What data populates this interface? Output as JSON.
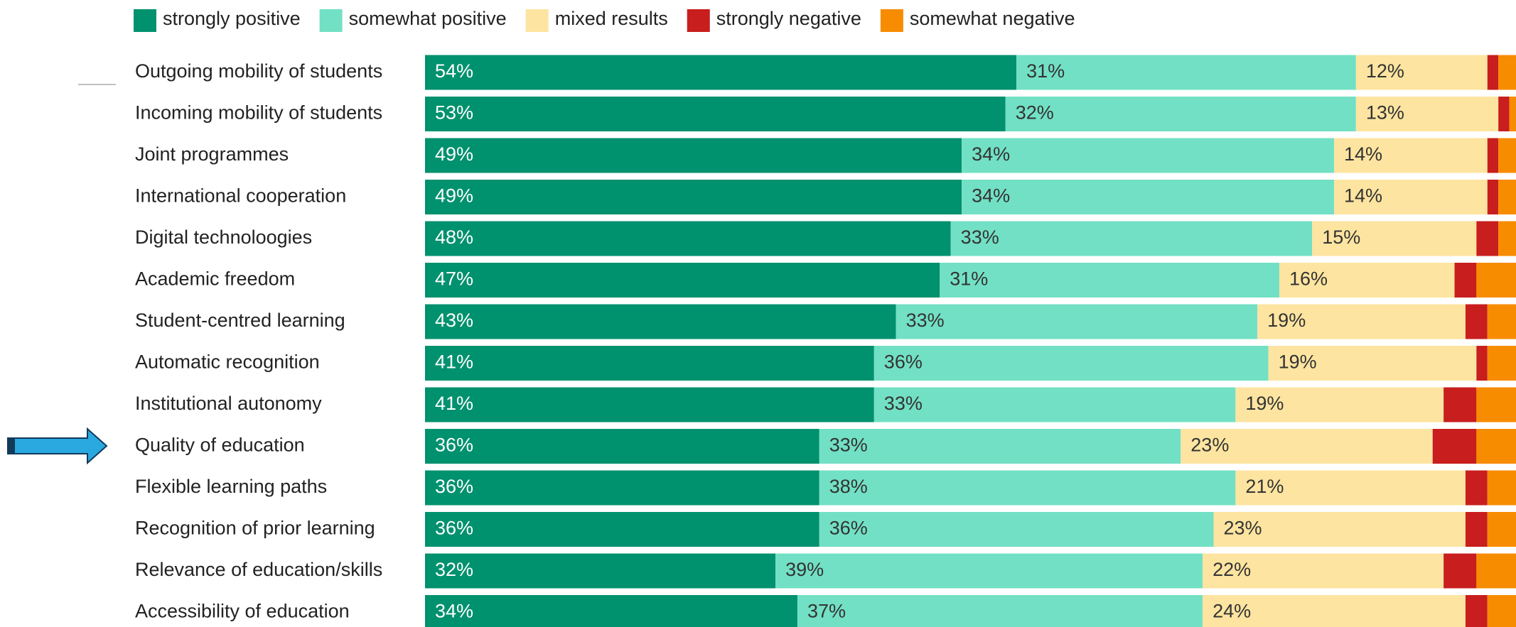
{
  "chart_data": {
    "type": "stacked-bar-horizontal",
    "categories": [
      "Outgoing mobility of students",
      "Incoming mobility of students",
      "Joint programmes",
      "International cooperation",
      "Digital technoloogies",
      "Academic freedom",
      "Student-centred learning",
      "Automatic recognition",
      "Institutional autonomy",
      "Quality of education",
      "Flexible learning paths",
      "Recognition of prior learning",
      "Relevance of education/skills",
      "Accessibility of education"
    ],
    "xlim": [
      0,
      100
    ],
    "series": [
      {
        "name": "strongly positive",
        "color": "#00916e",
        "values": [
          54,
          53,
          49,
          49,
          48,
          47,
          43,
          41,
          41,
          36,
          36,
          36,
          32,
          34
        ],
        "value_labels": [
          "54%",
          "53%",
          "49%",
          "49%",
          "48%",
          "47%",
          "43%",
          "41%",
          "41%",
          "36%",
          "36%",
          "36%",
          "32%",
          "34%"
        ]
      },
      {
        "name": "somewhat positive",
        "color": "#72e0c4",
        "values": [
          31,
          32,
          34,
          34,
          33,
          31,
          33,
          36,
          33,
          33,
          38,
          36,
          39,
          37
        ],
        "value_labels": [
          "31%",
          "32%",
          "34%",
          "34%",
          "33%",
          "31%",
          "33%",
          "36%",
          "33%",
          "33%",
          "38%",
          "36%",
          "39%",
          "37%"
        ]
      },
      {
        "name": "mixed results",
        "color": "#fde4a0",
        "values": [
          12,
          13,
          14,
          14,
          15,
          16,
          19,
          19,
          19,
          23,
          21,
          23,
          22,
          24
        ],
        "value_labels": [
          "12%",
          "13%",
          "14%",
          "14%",
          "15%",
          "16%",
          "19%",
          "19%",
          "19%",
          "23%",
          "21%",
          "23%",
          "22%",
          "24%"
        ]
      },
      {
        "name": "strongly negative",
        "color": "#c81e1e",
        "values": [
          1,
          1,
          1,
          1,
          2,
          2,
          2,
          1,
          3,
          4,
          2,
          2,
          3,
          2
        ]
      },
      {
        "name": "somewhat negative",
        "color": "#f78c00",
        "values": [
          2,
          1,
          2,
          2,
          2,
          4,
          3,
          3,
          4,
          4,
          3,
          3,
          4,
          3
        ]
      }
    ]
  }
}
